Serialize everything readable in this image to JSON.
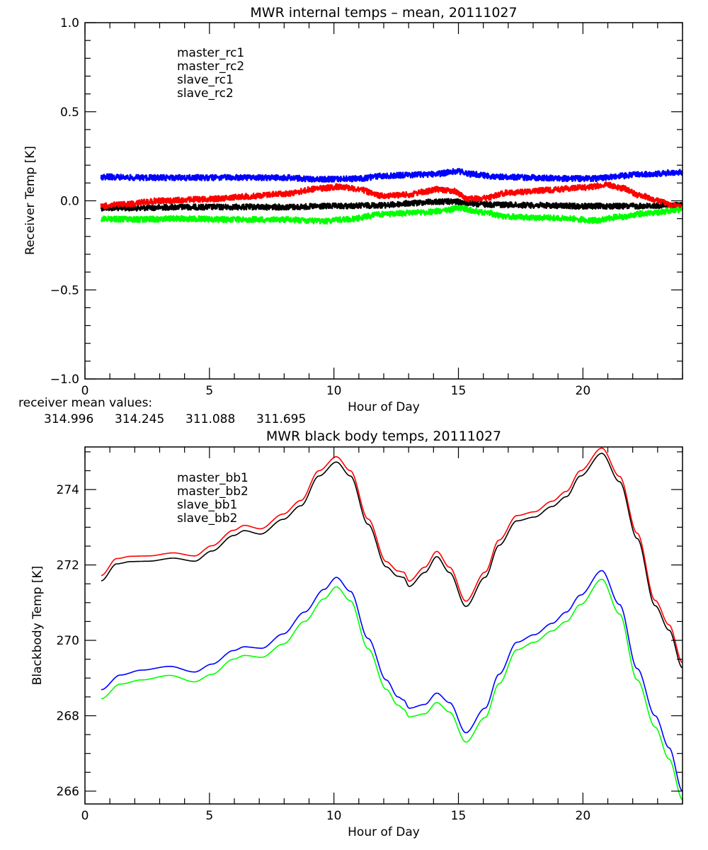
{
  "chart_data": [
    {
      "type": "line",
      "title": "MWR internal temps – mean, 20111027",
      "xlabel": "Hour of Day",
      "ylabel": "Receiver Temp [K]",
      "xlim": [
        0,
        24
      ],
      "ylim": [
        -1.0,
        1.0
      ],
      "xticks": [
        0,
        5,
        10,
        15,
        20
      ],
      "xtick_labels": [
        "0",
        "5",
        "10",
        "15",
        "20"
      ],
      "yticks": [
        -1.0,
        -0.5,
        0.0,
        0.5,
        1.0
      ],
      "ytick_labels": [
        "−1.0",
        "−0.5",
        "0.0",
        "0.5",
        "1.0"
      ],
      "x_minor_step": 1,
      "y_minor_step": 0.1,
      "grid": false,
      "legend_position": "top-left-inside",
      "noisy": true,
      "series": [
        {
          "name": "master_rc1",
          "color": "#000000",
          "x": [
            0.65,
            2,
            4,
            6,
            8,
            10,
            12,
            13,
            14,
            14.7,
            16,
            18,
            20,
            22,
            24
          ],
          "y": [
            -0.04,
            -0.04,
            -0.035,
            -0.035,
            -0.035,
            -0.03,
            -0.025,
            -0.015,
            -0.005,
            -0.005,
            -0.02,
            -0.025,
            -0.03,
            -0.03,
            -0.025
          ]
        },
        {
          "name": "master_rc2",
          "color": "#ff0000",
          "x": [
            0.65,
            1.5,
            3,
            5,
            6.5,
            8,
            9.5,
            10.3,
            11,
            11.8,
            12.3,
            13,
            13.6,
            14.2,
            14.8,
            15.4,
            16,
            17,
            18.5,
            20,
            21,
            21.6,
            22.3,
            23,
            23.6,
            24
          ],
          "y": [
            -0.03,
            -0.02,
            0.0,
            0.01,
            0.025,
            0.04,
            0.07,
            0.08,
            0.065,
            0.03,
            0.03,
            0.035,
            0.05,
            0.065,
            0.055,
            0.01,
            0.015,
            0.045,
            0.06,
            0.075,
            0.09,
            0.07,
            0.03,
            0.0,
            -0.025,
            -0.04
          ]
        },
        {
          "name": "slave_rc1",
          "color": "#0000ff",
          "x": [
            0.65,
            2,
            4,
            6,
            8,
            9.5,
            11,
            12,
            13,
            14,
            15,
            15.5,
            16.5,
            18,
            19.5,
            20.5,
            21.5,
            22.5,
            24
          ],
          "y": [
            0.135,
            0.13,
            0.13,
            0.13,
            0.13,
            0.12,
            0.125,
            0.14,
            0.145,
            0.15,
            0.165,
            0.15,
            0.135,
            0.13,
            0.125,
            0.125,
            0.14,
            0.15,
            0.16
          ]
        },
        {
          "name": "slave_rc2",
          "color": "#00ff00",
          "x": [
            0.65,
            2,
            4,
            6,
            8,
            9.5,
            10.5,
            12,
            13.5,
            14.5,
            15,
            16,
            17,
            18.5,
            19.5,
            20.5,
            21.5,
            22.5,
            24
          ],
          "y": [
            -0.1,
            -0.105,
            -0.1,
            -0.105,
            -0.105,
            -0.115,
            -0.105,
            -0.075,
            -0.065,
            -0.055,
            -0.04,
            -0.065,
            -0.09,
            -0.095,
            -0.1,
            -0.11,
            -0.09,
            -0.07,
            -0.05
          ]
        }
      ]
    },
    {
      "type": "line",
      "title": "MWR black body temps, 20111027",
      "xlabel": "Hour of Day",
      "ylabel": "Blackbody Temp [K]",
      "xlim": [
        0,
        24
      ],
      "ylim": [
        265.66,
        275.13
      ],
      "xticks": [
        0,
        5,
        10,
        15,
        20
      ],
      "xtick_labels": [
        "0",
        "5",
        "10",
        "15",
        "20"
      ],
      "yticks": [
        266,
        268,
        270,
        272,
        274
      ],
      "ytick_labels": [
        "266",
        "268",
        "270",
        "272",
        "274"
      ],
      "x_minor_step": 1,
      "y_minor_step": 0.5,
      "grid": false,
      "legend_position": "top-left-inside",
      "noisy": false,
      "series": [
        {
          "name": "master_bb1",
          "color": "#000000",
          "x": [
            0.65,
            1.28,
            1.85,
            2.56,
            3.55,
            4.4,
            5.1,
            5.97,
            6.4,
            7.05,
            7.96,
            8.67,
            9.4,
            10.1,
            10.66,
            11.37,
            12.1,
            12.57,
            12.8,
            13.02,
            13.65,
            14.13,
            14.64,
            15.3,
            16.07,
            16.63,
            17.35,
            18.05,
            18.76,
            19.33,
            19.9,
            20.76,
            21.47,
            22.18,
            22.9,
            23.46,
            24.0
          ],
          "y": [
            271.58,
            272.03,
            272.09,
            272.1,
            272.18,
            272.1,
            272.37,
            272.78,
            272.91,
            272.82,
            273.21,
            273.57,
            274.36,
            274.73,
            274.36,
            273.08,
            271.95,
            271.7,
            271.67,
            271.43,
            271.8,
            272.22,
            271.8,
            270.9,
            271.67,
            272.52,
            273.17,
            273.27,
            273.55,
            273.81,
            274.36,
            274.96,
            274.21,
            272.7,
            270.92,
            270.27,
            269.27
          ]
        },
        {
          "name": "master_bb2",
          "color": "#ff0000",
          "x": [
            0.65,
            1.28,
            1.85,
            2.56,
            3.55,
            4.4,
            5.1,
            5.97,
            6.4,
            7.05,
            7.96,
            8.67,
            9.4,
            10.1,
            10.66,
            11.37,
            12.1,
            12.57,
            12.8,
            13.02,
            13.65,
            14.13,
            14.64,
            15.3,
            16.07,
            16.63,
            17.35,
            18.05,
            18.76,
            19.33,
            19.9,
            20.76,
            21.47,
            22.18,
            22.9,
            23.46,
            24.0
          ],
          "y": [
            271.72,
            272.17,
            272.23,
            272.24,
            272.32,
            272.24,
            272.51,
            272.92,
            273.05,
            272.96,
            273.35,
            273.71,
            274.5,
            274.87,
            274.5,
            273.22,
            272.09,
            271.84,
            271.81,
            271.57,
            271.94,
            272.36,
            271.94,
            271.04,
            271.81,
            272.66,
            273.31,
            273.41,
            273.69,
            273.95,
            274.5,
            275.1,
            274.35,
            272.84,
            271.06,
            270.41,
            269.41
          ]
        },
        {
          "name": "slave_bb1",
          "color": "#0000ff",
          "x": [
            0.65,
            1.42,
            2.27,
            3.41,
            4.4,
            5.1,
            5.97,
            6.4,
            7.1,
            7.96,
            8.82,
            9.6,
            10.1,
            10.66,
            11.37,
            12.1,
            12.57,
            12.8,
            13.02,
            13.65,
            14.13,
            14.64,
            15.3,
            16.07,
            16.63,
            17.35,
            18.05,
            18.76,
            19.33,
            19.9,
            20.76,
            21.47,
            22.18,
            22.9,
            23.46,
            24.0
          ],
          "y": [
            268.69,
            269.08,
            269.21,
            269.31,
            269.16,
            269.37,
            269.73,
            269.83,
            269.79,
            270.17,
            270.75,
            271.35,
            271.67,
            271.3,
            270.05,
            268.95,
            268.5,
            268.42,
            268.2,
            268.3,
            268.6,
            268.35,
            267.55,
            268.2,
            269.1,
            269.95,
            270.15,
            270.45,
            270.75,
            271.2,
            271.85,
            270.95,
            269.25,
            268.0,
            267.15,
            266.0
          ]
        },
        {
          "name": "slave_bb2",
          "color": "#00ff00",
          "x": [
            0.65,
            1.42,
            2.27,
            3.41,
            4.4,
            5.1,
            5.97,
            6.4,
            7.1,
            7.96,
            8.82,
            9.6,
            10.1,
            10.66,
            11.37,
            12.1,
            12.57,
            12.8,
            13.02,
            13.65,
            14.13,
            14.64,
            15.3,
            16.07,
            16.63,
            17.35,
            18.05,
            18.76,
            19.33,
            19.9,
            20.76,
            21.47,
            22.18,
            22.9,
            23.46,
            24.0
          ],
          "y": [
            268.45,
            268.84,
            268.95,
            269.07,
            268.9,
            269.1,
            269.5,
            269.6,
            269.55,
            269.9,
            270.5,
            271.1,
            271.42,
            271.05,
            269.78,
            268.7,
            268.28,
            268.18,
            267.97,
            268.05,
            268.35,
            268.1,
            267.3,
            267.95,
            268.85,
            269.75,
            269.95,
            270.25,
            270.5,
            270.95,
            271.62,
            270.7,
            268.95,
            267.7,
            266.85,
            265.78
          ]
        }
      ]
    }
  ],
  "receiver_mean": {
    "label": "receiver mean values:",
    "values": [
      {
        "name": "master_rc1",
        "value": "314.996",
        "color": "#000000"
      },
      {
        "name": "master_rc2",
        "value": "314.245",
        "color": "#ff0000"
      },
      {
        "name": "slave_rc1",
        "value": "311.088",
        "color": "#0000ff"
      },
      {
        "name": "slave_rc2",
        "value": "311.695",
        "color": "#00ff00"
      }
    ]
  }
}
